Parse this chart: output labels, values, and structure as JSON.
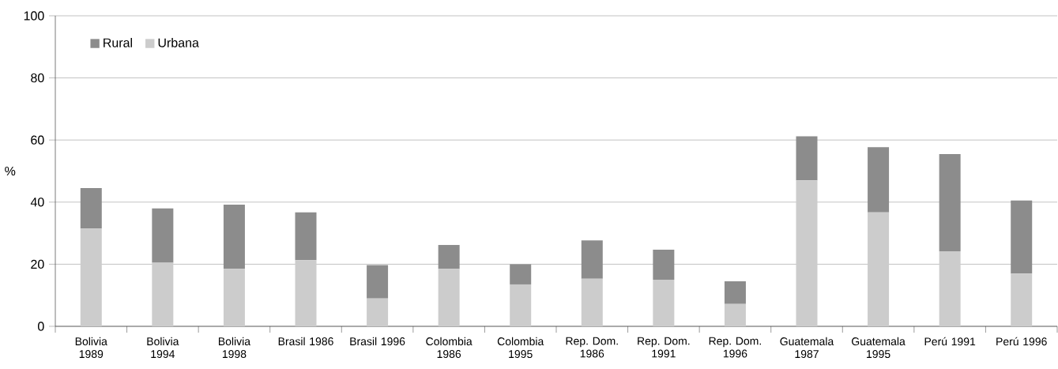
{
  "chart_data": {
    "type": "bar",
    "stacked": true,
    "ylabel": "%",
    "categories": [
      "Bolivia 1989",
      "Bolivia 1994",
      "Bolivia 1998",
      "Brasil 1986",
      "Brasil 1996",
      "Colombia 1986",
      "Colombia 1995",
      "Rep. Dom. 1986",
      "Rep. Dom. 1991",
      "Rep. Dom. 1996",
      "Guatemala 1987",
      "Guatemala 1995",
      "Perú 1991",
      "Perú 1996"
    ],
    "series": [
      {
        "name": "Urbana",
        "color": "#cccccc",
        "values": [
          31.5,
          20.5,
          18.5,
          21.3,
          9,
          18.5,
          13.5,
          15.3,
          15,
          7.2,
          47,
          36.7,
          24.2,
          17
        ]
      },
      {
        "name": "Rural",
        "color": "#8c8c8c",
        "values": [
          13,
          17.5,
          20.7,
          15.4,
          10.7,
          7.7,
          6.5,
          12.4,
          9.7,
          7.3,
          14.2,
          21,
          31.3,
          23.5
        ]
      }
    ],
    "ylim": [
      0,
      100
    ],
    "yticks": [
      0,
      20,
      40,
      60,
      80,
      100
    ],
    "grid": "y",
    "legend": "top left"
  }
}
